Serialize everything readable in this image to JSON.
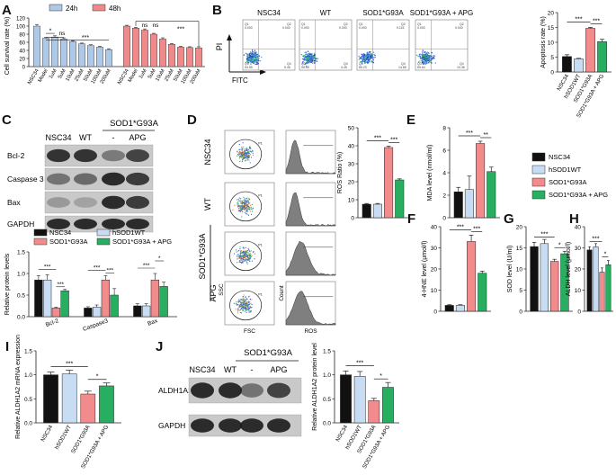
{
  "panels": {
    "A": "A",
    "B": "B",
    "C": "C",
    "D": "D",
    "E": "E",
    "F": "F",
    "G": "G",
    "H": "H",
    "I": "I",
    "J": "J"
  },
  "colors": {
    "c24h": "#aec8e8",
    "c48h": "#f08a8a",
    "NSC34": "#111111",
    "hSOD1WT": "#c8dcf4",
    "SOD1G93A": "#f28b8b",
    "APG": "#27ae60"
  },
  "groups4": [
    "NSC34",
    "hSOD1WT",
    "SOD1*G93A",
    "SOD1*G93A + APG"
  ],
  "legend_main": [
    "NSC34",
    "hSOD1WT",
    "SOD1*G93A",
    "SOD1*G93A + APG"
  ],
  "panelA": {
    "ylabel": "Cell survival rate (%)",
    "yticks": [
      "0",
      "20",
      "40",
      "60",
      "80",
      "100",
      "120"
    ],
    "legend": [
      "24h",
      "48h"
    ],
    "xlabels": [
      "NSC34",
      "Model",
      "1uM",
      "5uM",
      "10uM",
      "25uM",
      "50uM",
      "100uM",
      "200uM"
    ],
    "sig_24h": [
      "*",
      "ns",
      "***"
    ],
    "sig_48h": [
      "ns",
      "ns",
      "***"
    ]
  },
  "panelB": {
    "titles": [
      "NSC34",
      "WT",
      "SOD1*G93A",
      "SOD1*G93A + APG"
    ],
    "yaxis": "PI",
    "xaxis": "FITC",
    "quad_labels": [
      "Q1",
      "Q2",
      "Q3",
      "Q4"
    ],
    "quad_values": [
      [
        "0.000",
        "0.000",
        "94.55",
        "5.45"
      ],
      [
        "0.000",
        "0.000",
        "95.55",
        "4.45"
      ],
      [
        "0.000",
        "0.115",
        "85.23",
        "14.65"
      ],
      [
        "0.000",
        "0.000",
        "89.64",
        "10.36"
      ]
    ]
  },
  "panelC": {
    "header_group": "SOD1*G93A",
    "lanes": [
      "NSC34",
      "WT",
      "-",
      "APG"
    ],
    "proteins": [
      "Bcl-2",
      "Caspase 3",
      "Bax",
      "GAPDH"
    ],
    "ylabel": "Relative protein levels",
    "categories": [
      "Bcl-2",
      "Caspase3",
      "Bax"
    ]
  },
  "panelD": {
    "rows": [
      "NSC34",
      "WT",
      "SOD1*G93A",
      "APG"
    ],
    "ssc": "SSC",
    "fsc": "FSC",
    "count": "Count",
    "ros": "ROS",
    "gate": "P1"
  },
  "panelE": {
    "ylabel": "MDA level (nmol/ml)"
  },
  "panelF": {
    "ylabel": "4-HNE level (μmol/l)"
  },
  "panelG": {
    "ylabel": "SOD level (U/ml)"
  },
  "panelH": {
    "ylabel": "ALDH level (μmol/l)"
  },
  "panelI": {
    "ylabel": "Relative ALDH1A2 mRNA expression"
  },
  "panelJ": {
    "header_group": "SOD1*G93A",
    "lanes": [
      "NSC34",
      "WT",
      "-",
      "APG"
    ],
    "proteins": [
      "ALDH1A2",
      "GAPDH"
    ],
    "ylabel": "Relative ALDH1A2 protein level"
  },
  "ros_ratio_ylabel": "ROS Ratio (%)",
  "apoptosis_ylabel": "Apoptosis rate (%)",
  "chart_data": [
    {
      "id": "A",
      "type": "bar",
      "title": "",
      "ylabel": "Cell survival rate (%)",
      "ylim": [
        0,
        120
      ],
      "categories": [
        "NSC34",
        "Model",
        "1uM",
        "5uM",
        "10uM",
        "25uM",
        "50uM",
        "100uM",
        "200uM"
      ],
      "series": [
        {
          "name": "24h",
          "values": [
            100,
            70,
            73,
            68,
            62,
            56,
            52,
            48,
            42
          ],
          "errors": [
            4,
            2,
            3,
            3,
            2,
            2,
            2,
            2,
            2
          ]
        },
        {
          "name": "48h",
          "values": [
            100,
            95,
            90,
            80,
            68,
            55,
            48,
            47,
            46
          ],
          "errors": [
            2,
            2,
            3,
            2,
            3,
            2,
            2,
            2,
            3
          ]
        }
      ]
    },
    {
      "id": "B-bar",
      "type": "bar",
      "ylabel": "Apoptosis rate (%)",
      "ylim": [
        0,
        20
      ],
      "categories": [
        "NSC34",
        "hSOD1WT",
        "SOD1*G93A",
        "SOD1*G93A + APG"
      ],
      "values": [
        5.2,
        4.4,
        14.7,
        10.2
      ],
      "errors": [
        0.6,
        0.2,
        0.3,
        0.8
      ],
      "sig": [
        "***",
        "***"
      ]
    },
    {
      "id": "C-bar",
      "type": "bar",
      "ylabel": "Relative protein levels",
      "ylim": [
        0,
        1.5
      ],
      "categories": [
        "Bcl-2",
        "Caspase3",
        "Bax"
      ],
      "series": [
        {
          "name": "NSC34",
          "values": [
            0.85,
            0.2,
            0.25
          ],
          "errors": [
            0.1,
            0.03,
            0.05
          ]
        },
        {
          "name": "hSOD1WT",
          "values": [
            0.85,
            0.22,
            0.25
          ],
          "errors": [
            0.12,
            0.05,
            0.05
          ]
        },
        {
          "name": "SOD1*G93A",
          "values": [
            0.2,
            0.85,
            0.85
          ],
          "errors": [
            0.02,
            0.1,
            0.15
          ]
        },
        {
          "name": "SOD1*G93A + APG",
          "values": [
            0.6,
            0.5,
            0.7
          ],
          "errors": [
            0.03,
            0.15,
            0.1
          ]
        }
      ],
      "sig": [
        [
          "***",
          "***"
        ],
        [
          "***",
          "***"
        ],
        [
          "***",
          "*"
        ]
      ]
    },
    {
      "id": "D-bar",
      "type": "bar",
      "ylabel": "ROS Ratio (%)",
      "ylim": [
        0,
        50
      ],
      "categories": [
        "NSC34",
        "hSOD1WT",
        "SOD1*G93A",
        "SOD1*G93A + APG"
      ],
      "values": [
        7.5,
        7.5,
        39,
        21
      ],
      "errors": [
        0.4,
        0.4,
        0.8,
        0.6
      ],
      "sig": [
        "***",
        "***"
      ]
    },
    {
      "id": "E",
      "type": "bar",
      "ylabel": "MDA level (nmol/ml)",
      "ylim": [
        0,
        8
      ],
      "categories": [
        "NSC34",
        "hSOD1WT",
        "SOD1*G93A",
        "SOD1*G93A + APG"
      ],
      "values": [
        2.3,
        2.5,
        6.6,
        4.1
      ],
      "errors": [
        0.4,
        1.2,
        0.2,
        0.4
      ],
      "sig": [
        "***",
        "**"
      ]
    },
    {
      "id": "F",
      "type": "bar",
      "ylabel": "4-HNE level (μmol/l)",
      "ylim": [
        0,
        40
      ],
      "categories": [
        "NSC34",
        "hSOD1WT",
        "SOD1*G93A",
        "SOD1*G93A + APG"
      ],
      "values": [
        2.8,
        2.8,
        33,
        18
      ],
      "errors": [
        0.3,
        0.3,
        3,
        1
      ],
      "sig": [
        "***",
        "***"
      ]
    },
    {
      "id": "G",
      "type": "bar",
      "ylabel": "SOD level (U/ml)",
      "ylim": [
        0,
        20
      ],
      "categories": [
        "NSC34",
        "hSOD1WT",
        "SOD1*G93A",
        "SOD1*G93A + APG"
      ],
      "values": [
        15.3,
        16,
        11.8,
        13.6
      ],
      "errors": [
        1,
        1,
        0.5,
        0.6
      ],
      "sig": [
        "***",
        "*"
      ]
    },
    {
      "id": "H",
      "type": "bar",
      "ylabel": "ALDH level (μmol/l)",
      "ylim": [
        0,
        40
      ],
      "categories": [
        "NSC34",
        "hSOD1WT",
        "SOD1*G93A",
        "SOD1*G93A + APG"
      ],
      "values": [
        29,
        30.5,
        18.5,
        22
      ],
      "errors": [
        1.5,
        1.5,
        2,
        2
      ],
      "sig": [
        "***",
        "*"
      ]
    },
    {
      "id": "I",
      "type": "bar",
      "ylabel": "Relative ALDH1A2 mRNA expression",
      "ylim": [
        0,
        1.5
      ],
      "categories": [
        "NSC34",
        "hSOD1WT",
        "SOD1*G93A",
        "SOD1*G93A + APG"
      ],
      "values": [
        1.0,
        1.02,
        0.6,
        0.77
      ],
      "errors": [
        0.06,
        0.08,
        0.06,
        0.06
      ],
      "sig": [
        "***",
        "*"
      ]
    },
    {
      "id": "J-bar",
      "type": "bar",
      "ylabel": "Relative ALDH1A2 protein level",
      "ylim": [
        0,
        1.5
      ],
      "categories": [
        "NSC34",
        "hSOD1WT",
        "SOD1*G93A",
        "SOD1*G93A + APG"
      ],
      "values": [
        1.0,
        0.97,
        0.46,
        0.74
      ],
      "errors": [
        0.08,
        0.1,
        0.05,
        0.1
      ],
      "sig": [
        "***",
        "*"
      ]
    }
  ]
}
